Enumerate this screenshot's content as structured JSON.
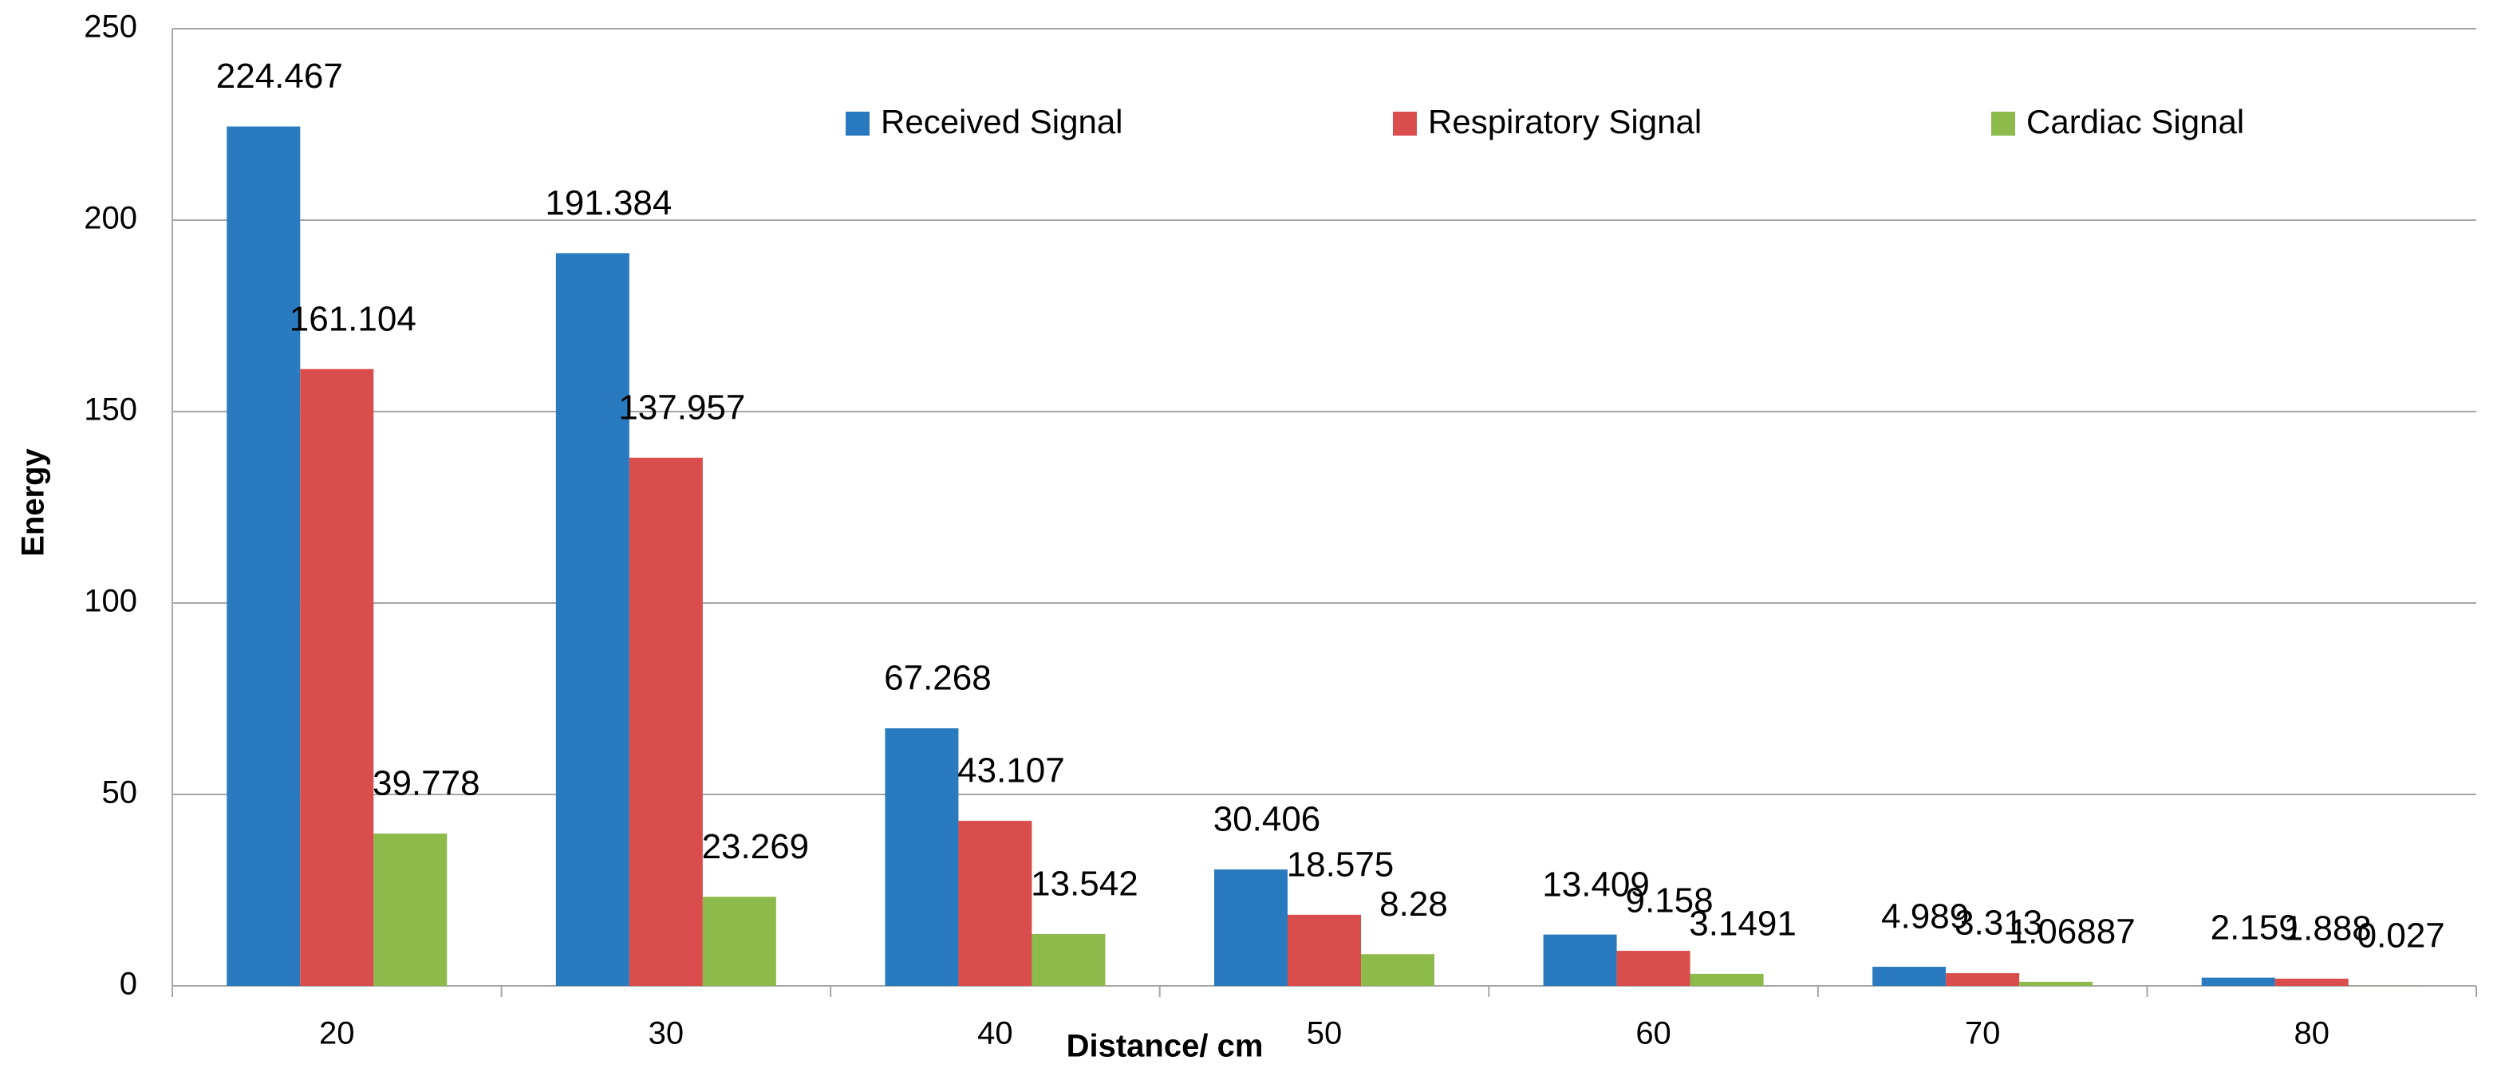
{
  "chart_data": {
    "type": "bar",
    "x_label": "Distance/ cm",
    "y_label": "Energy",
    "categories": [
      "20",
      "30",
      "40",
      "50",
      "60",
      "70",
      "80"
    ],
    "series": [
      {
        "name": "Received Signal",
        "color": "#2a7abf",
        "values": [
          224.467,
          191.384,
          67.268,
          30.406,
          13.409,
          4.989,
          2.159
        ]
      },
      {
        "name": "Respiratory Signal",
        "color": "#d94d4c",
        "values": [
          161.104,
          137.957,
          43.107,
          18.575,
          9.158,
          3.313,
          1.888
        ]
      },
      {
        "name": "Cardiac Signal",
        "color": "#8cba4b",
        "values": [
          39.778,
          23.269,
          13.542,
          8.28,
          3.1491,
          1.06887,
          0.027
        ]
      }
    ],
    "ylim": [
      0,
      250
    ],
    "yticks": [
      0,
      50,
      100,
      150,
      200,
      250
    ],
    "grid": true
  }
}
